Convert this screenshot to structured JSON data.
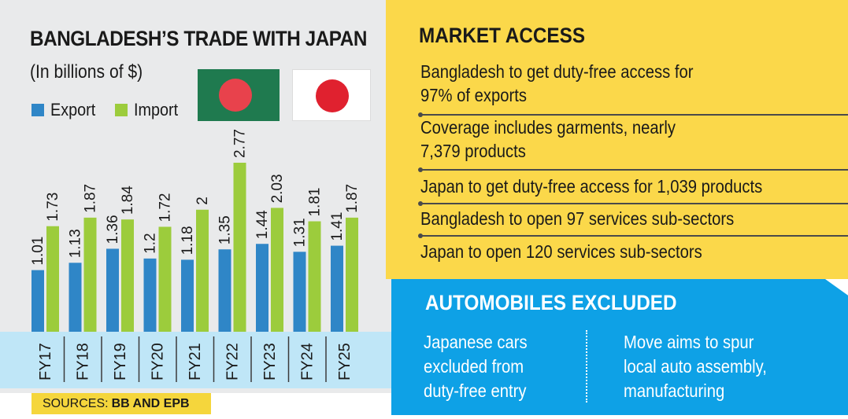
{
  "chart": {
    "title": "BANGLADESH’S TRADE WITH JAPAN",
    "subtitle": "(In billions of $)",
    "legend": {
      "export_label": "Export",
      "import_label": "Import"
    },
    "sources_prefix": "SOURCES:",
    "sources_value": "BB AND EPB"
  },
  "colors": {
    "export": "#2f86c7",
    "import": "#9ccc3c",
    "market_bg": "#fbd84a",
    "auto_bg": "#0ea1e6",
    "axis_band": "#bfe6f7",
    "chart_bg": "#e9eaeb"
  },
  "chart_data": {
    "type": "bar",
    "categories": [
      "FY17",
      "FY18",
      "FY19",
      "FY20",
      "FY21",
      "FY22",
      "FY23",
      "FY24",
      "FY25"
    ],
    "series": [
      {
        "name": "Export",
        "values": [
          1.01,
          1.13,
          1.36,
          1.2,
          1.18,
          1.35,
          1.44,
          1.31,
          1.41
        ],
        "labels": [
          "1.01",
          "1.13",
          "1.36",
          "1.2",
          "1.18",
          "1.35",
          "1.44",
          "1.31",
          "1.41"
        ]
      },
      {
        "name": "Import",
        "values": [
          1.73,
          1.87,
          1.84,
          1.72,
          2,
          2.77,
          2.03,
          1.81,
          1.87
        ],
        "labels": [
          "1.73",
          "1.87",
          "1.84",
          "1.72",
          "2",
          "2.77",
          "2.03",
          "1.81",
          "1.87"
        ]
      }
    ],
    "title": "BANGLADESH’S TRADE WITH JAPAN",
    "ylabel": "(In billions of $)",
    "ylim": [
      0,
      2.9
    ]
  },
  "market_access": {
    "title": "MARKET ACCESS",
    "items": [
      "Bangladesh to get duty-free access for\n97% of exports",
      "Coverage includes garments, nearly\n7,379 products",
      "Japan to get duty-free access for 1,039 products",
      "Bangladesh to open 97 services sub-sectors",
      "Japan to open 120 services sub-sectors"
    ]
  },
  "automobiles": {
    "title": "AUTOMOBILES EXCLUDED",
    "left_text": "Japanese cars\nexcluded from\nduty-free entry",
    "right_text": "Move aims to spur\nlocal auto assembly,\nmanufacturing"
  }
}
